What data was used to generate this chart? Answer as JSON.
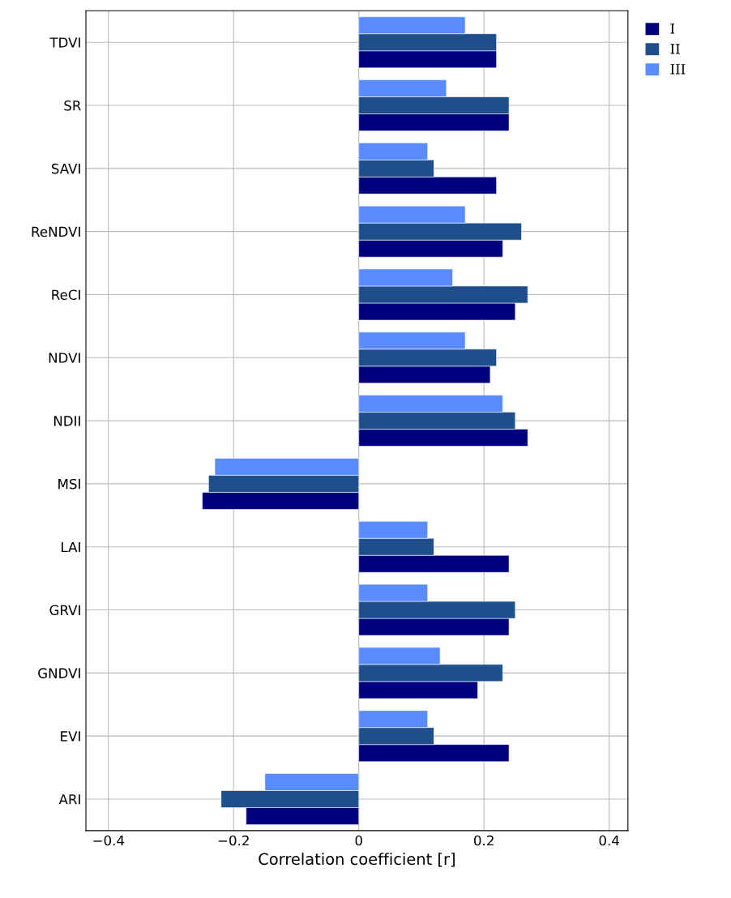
{
  "chart_data": {
    "type": "bar",
    "orientation": "horizontal",
    "xlabel": "Correlation coefficient [r]",
    "categories": [
      "TDVI",
      "SR",
      "SAVI",
      "ReNDVI",
      "ReCI",
      "NDVI",
      "NDII",
      "MSI",
      "LAI",
      "GRVI",
      "GNDVI",
      "EVI",
      "ARI"
    ],
    "series": [
      {
        "name": "I",
        "color": "#00007f",
        "values": [
          0.22,
          0.24,
          0.22,
          0.23,
          0.25,
          0.21,
          0.27,
          -0.25,
          0.24,
          0.24,
          0.19,
          0.24,
          -0.18
        ]
      },
      {
        "name": "II",
        "color": "#1f4e8c",
        "values": [
          0.22,
          0.24,
          0.12,
          0.26,
          0.27,
          0.22,
          0.25,
          -0.24,
          0.12,
          0.25,
          0.23,
          0.12,
          -0.22
        ]
      },
      {
        "name": "III",
        "color": "#5a8cff",
        "values": [
          0.17,
          0.14,
          0.11,
          0.17,
          0.15,
          0.17,
          0.23,
          -0.23,
          0.11,
          0.11,
          0.13,
          0.11,
          -0.15
        ]
      }
    ],
    "xlim": [
      -0.436,
      0.43
    ],
    "xticks": [
      {
        "value": -0.4,
        "label": "−0.4"
      },
      {
        "value": -0.2,
        "label": "−0.2"
      },
      0,
      0.2,
      0.4
    ],
    "grid": true,
    "legend": "top right"
  }
}
